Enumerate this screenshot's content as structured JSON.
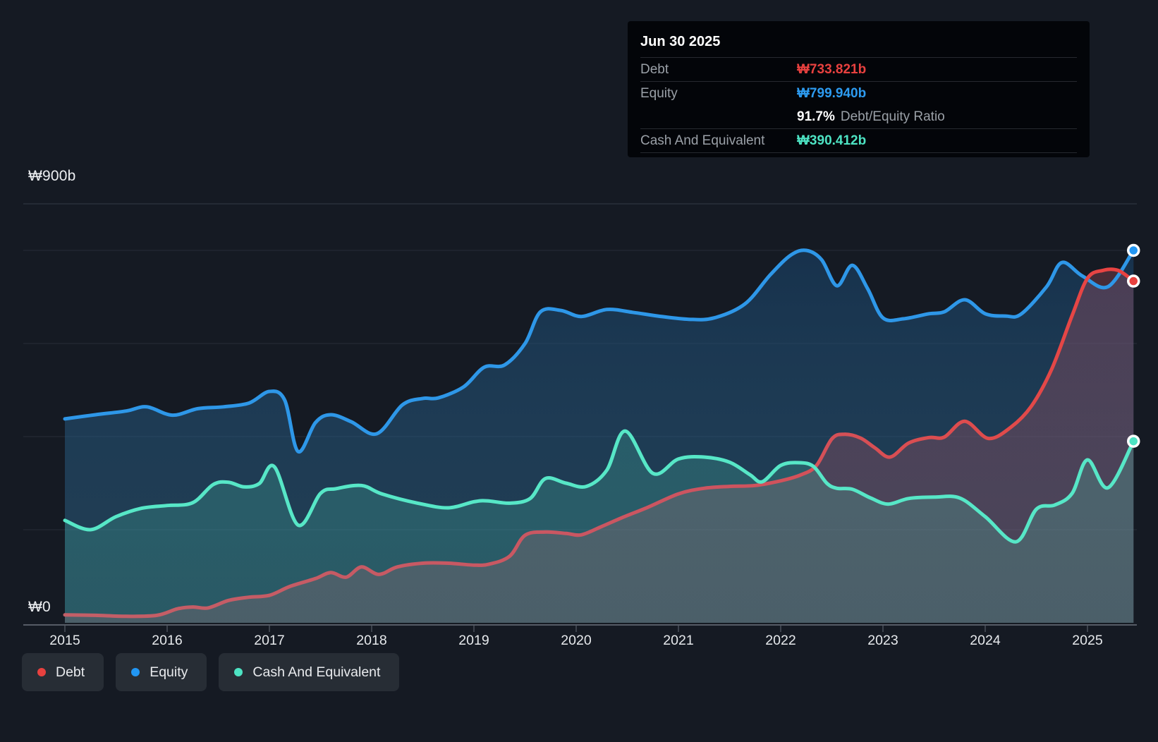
{
  "y_axis": {
    "top_label": "₩900b",
    "zero_label": "₩0"
  },
  "tooltip": {
    "date": "Jun 30 2025",
    "debt_label": "Debt",
    "debt_value": "₩733.821b",
    "equity_label": "Equity",
    "equity_value": "₩799.940b",
    "ratio_value": "91.7%",
    "ratio_label": "Debt/Equity Ratio",
    "cash_label": "Cash And Equivalent",
    "cash_value": "₩390.412b"
  },
  "legend": [
    {
      "label": "Debt",
      "color": "#e8413f"
    },
    {
      "label": "Equity",
      "color": "#2196f3"
    },
    {
      "label": "Cash And Equivalent",
      "color": "#4de3c3"
    }
  ],
  "colors": {
    "background": "#151a23",
    "grid": "#262c37",
    "grid_top": "#333a46",
    "axis": "#565c66",
    "tick": "#4a505a"
  },
  "chart_data": {
    "type": "area",
    "title": "Debt, Equity and Cash history (₩ billions)",
    "x_ticks": [
      "2015",
      "2016",
      "2017",
      "2018",
      "2019",
      "2020",
      "2021",
      "2022",
      "2023",
      "2024",
      "2025"
    ],
    "x_range": [
      2015,
      2025.45
    ],
    "ylim": [
      0,
      900
    ],
    "y_gridlines_b": [
      200,
      400,
      600,
      800,
      900
    ],
    "legend_position": "bottom",
    "series": [
      {
        "name": "Equity",
        "line_color": "#2e97e8",
        "dot_color": "#2196f3",
        "fill": "equityFill",
        "points": [
          [
            2015.0,
            438
          ],
          [
            2015.3,
            447
          ],
          [
            2015.6,
            455
          ],
          [
            2015.8,
            464
          ],
          [
            2016.05,
            446
          ],
          [
            2016.3,
            460
          ],
          [
            2016.55,
            464
          ],
          [
            2016.8,
            472
          ],
          [
            2017.0,
            497
          ],
          [
            2017.15,
            478
          ],
          [
            2017.28,
            368
          ],
          [
            2017.45,
            430
          ],
          [
            2017.6,
            447
          ],
          [
            2017.8,
            432
          ],
          [
            2018.05,
            406
          ],
          [
            2018.3,
            468
          ],
          [
            2018.5,
            482
          ],
          [
            2018.65,
            483
          ],
          [
            2018.9,
            507
          ],
          [
            2019.1,
            549
          ],
          [
            2019.3,
            554
          ],
          [
            2019.5,
            600
          ],
          [
            2019.65,
            668
          ],
          [
            2019.85,
            671
          ],
          [
            2020.05,
            658
          ],
          [
            2020.3,
            673
          ],
          [
            2020.55,
            667
          ],
          [
            2020.8,
            659
          ],
          [
            2021.1,
            652
          ],
          [
            2021.35,
            655
          ],
          [
            2021.65,
            685
          ],
          [
            2021.9,
            748
          ],
          [
            2022.1,
            790
          ],
          [
            2022.25,
            800
          ],
          [
            2022.4,
            780
          ],
          [
            2022.55,
            724
          ],
          [
            2022.7,
            768
          ],
          [
            2022.85,
            718
          ],
          [
            2023.0,
            655
          ],
          [
            2023.2,
            653
          ],
          [
            2023.45,
            664
          ],
          [
            2023.6,
            668
          ],
          [
            2023.8,
            694
          ],
          [
            2024.0,
            664
          ],
          [
            2024.2,
            659
          ],
          [
            2024.35,
            663
          ],
          [
            2024.6,
            722
          ],
          [
            2024.75,
            774
          ],
          [
            2024.95,
            745
          ],
          [
            2025.2,
            722
          ],
          [
            2025.45,
            800
          ]
        ]
      },
      {
        "name": "Debt",
        "line_color": "#cf5560",
        "dot_color": "#e8413f",
        "fill": "debtFill",
        "points": [
          [
            2015.0,
            17
          ],
          [
            2015.3,
            16
          ],
          [
            2015.6,
            14
          ],
          [
            2015.9,
            16
          ],
          [
            2016.1,
            30
          ],
          [
            2016.25,
            34
          ],
          [
            2016.4,
            32
          ],
          [
            2016.6,
            48
          ],
          [
            2016.8,
            55
          ],
          [
            2017.0,
            59
          ],
          [
            2017.2,
            78
          ],
          [
            2017.45,
            95
          ],
          [
            2017.6,
            108
          ],
          [
            2017.75,
            98
          ],
          [
            2017.9,
            120
          ],
          [
            2018.07,
            104
          ],
          [
            2018.25,
            120
          ],
          [
            2018.5,
            128
          ],
          [
            2018.75,
            128
          ],
          [
            2019.0,
            124
          ],
          [
            2019.15,
            126
          ],
          [
            2019.35,
            143
          ],
          [
            2019.5,
            188
          ],
          [
            2019.7,
            195
          ],
          [
            2019.9,
            192
          ],
          [
            2020.05,
            189
          ],
          [
            2020.25,
            207
          ],
          [
            2020.45,
            226
          ],
          [
            2020.7,
            248
          ],
          [
            2021.0,
            277
          ],
          [
            2021.25,
            289
          ],
          [
            2021.5,
            293
          ],
          [
            2021.75,
            295
          ],
          [
            2022.0,
            305
          ],
          [
            2022.2,
            318
          ],
          [
            2022.35,
            338
          ],
          [
            2022.5,
            395
          ],
          [
            2022.62,
            405
          ],
          [
            2022.78,
            397
          ],
          [
            2022.92,
            376
          ],
          [
            2023.07,
            356
          ],
          [
            2023.25,
            386
          ],
          [
            2023.45,
            398
          ],
          [
            2023.6,
            399
          ],
          [
            2023.8,
            433
          ],
          [
            2024.03,
            396
          ],
          [
            2024.25,
            420
          ],
          [
            2024.45,
            465
          ],
          [
            2024.65,
            545
          ],
          [
            2024.85,
            660
          ],
          [
            2025.0,
            740
          ],
          [
            2025.15,
            757
          ],
          [
            2025.3,
            757
          ],
          [
            2025.45,
            734
          ]
        ]
      },
      {
        "name": "Cash And Equivalent",
        "line_color": "#57e7c7",
        "dot_color": "#4de3c3",
        "fill": "cashFill",
        "points": [
          [
            2015.0,
            220
          ],
          [
            2015.25,
            200
          ],
          [
            2015.5,
            228
          ],
          [
            2015.75,
            246
          ],
          [
            2016.0,
            252
          ],
          [
            2016.25,
            258
          ],
          [
            2016.45,
            297
          ],
          [
            2016.6,
            302
          ],
          [
            2016.75,
            292
          ],
          [
            2016.9,
            299
          ],
          [
            2017.05,
            335
          ],
          [
            2017.28,
            210
          ],
          [
            2017.5,
            278
          ],
          [
            2017.65,
            288
          ],
          [
            2017.9,
            295
          ],
          [
            2018.1,
            277
          ],
          [
            2018.45,
            257
          ],
          [
            2018.75,
            247
          ],
          [
            2019.0,
            260
          ],
          [
            2019.13,
            262
          ],
          [
            2019.35,
            257
          ],
          [
            2019.55,
            267
          ],
          [
            2019.7,
            310
          ],
          [
            2019.9,
            300
          ],
          [
            2020.1,
            293
          ],
          [
            2020.3,
            328
          ],
          [
            2020.48,
            412
          ],
          [
            2020.75,
            321
          ],
          [
            2021.0,
            352
          ],
          [
            2021.25,
            356
          ],
          [
            2021.5,
            345
          ],
          [
            2021.7,
            318
          ],
          [
            2021.82,
            303
          ],
          [
            2022.0,
            338
          ],
          [
            2022.18,
            344
          ],
          [
            2022.32,
            336
          ],
          [
            2022.45,
            300
          ],
          [
            2022.55,
            289
          ],
          [
            2022.7,
            287
          ],
          [
            2022.88,
            268
          ],
          [
            2023.05,
            255
          ],
          [
            2023.25,
            267
          ],
          [
            2023.5,
            270
          ],
          [
            2023.75,
            268
          ],
          [
            2024.0,
            228
          ],
          [
            2024.3,
            174
          ],
          [
            2024.5,
            244
          ],
          [
            2024.68,
            253
          ],
          [
            2024.85,
            278
          ],
          [
            2025.0,
            350
          ],
          [
            2025.2,
            290
          ],
          [
            2025.45,
            390
          ]
        ]
      }
    ]
  }
}
